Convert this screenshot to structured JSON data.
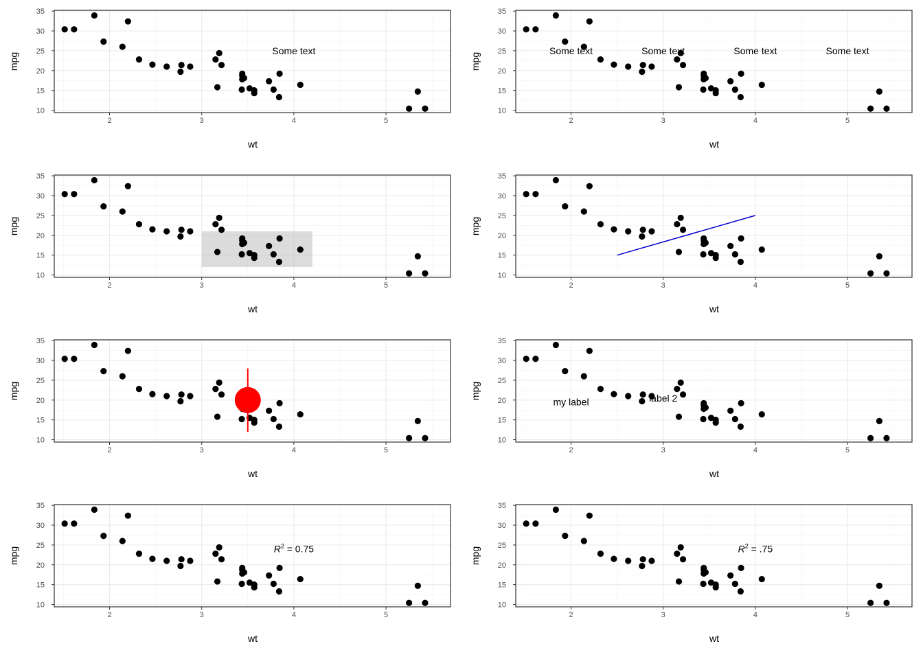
{
  "chart_data": [
    {
      "type": "scatter",
      "xlabel": "wt",
      "ylabel": "mpg",
      "xlim": [
        1.4,
        5.7
      ],
      "ylim": [
        9.4,
        35.2
      ],
      "x_ticks": [
        2,
        3,
        4,
        5
      ],
      "y_ticks": [
        10,
        15,
        20,
        25,
        30,
        35
      ],
      "grid": true,
      "annotations": [
        {
          "kind": "text",
          "text": "Some text",
          "x": 4,
          "y": 25
        }
      ]
    },
    {
      "type": "scatter",
      "xlabel": "wt",
      "ylabel": "mpg",
      "xlim": [
        1.4,
        5.7
      ],
      "ylim": [
        9.4,
        35.2
      ],
      "x_ticks": [
        2,
        3,
        4,
        5
      ],
      "y_ticks": [
        10,
        15,
        20,
        25,
        30,
        35
      ],
      "grid": true,
      "annotations": [
        {
          "kind": "text",
          "text": "Some text",
          "x": 2,
          "y": 25
        },
        {
          "kind": "text",
          "text": "Some text",
          "x": 3,
          "y": 25
        },
        {
          "kind": "text",
          "text": "Some text",
          "x": 4,
          "y": 25
        },
        {
          "kind": "text",
          "text": "Some text",
          "x": 5,
          "y": 25
        }
      ]
    },
    {
      "type": "scatter",
      "xlabel": "wt",
      "ylabel": "mpg",
      "xlim": [
        1.4,
        5.7
      ],
      "ylim": [
        9.4,
        35.2
      ],
      "x_ticks": [
        2,
        3,
        4,
        5
      ],
      "y_ticks": [
        10,
        15,
        20,
        25,
        30,
        35
      ],
      "grid": true,
      "annotations": [
        {
          "kind": "rect",
          "xmin": 3,
          "xmax": 4.2,
          "ymin": 12,
          "ymax": 21,
          "color": "#bfbfbf",
          "opacity": 0.55
        }
      ]
    },
    {
      "type": "scatter",
      "xlabel": "wt",
      "ylabel": "mpg",
      "xlim": [
        1.4,
        5.7
      ],
      "ylim": [
        9.4,
        35.2
      ],
      "x_ticks": [
        2,
        3,
        4,
        5
      ],
      "y_ticks": [
        10,
        15,
        20,
        25,
        30,
        35
      ],
      "grid": true,
      "annotations": [
        {
          "kind": "segment",
          "x": 2.5,
          "y": 15,
          "xend": 4,
          "yend": 25,
          "color": "#0000cc"
        }
      ]
    },
    {
      "type": "scatter",
      "xlabel": "wt",
      "ylabel": "mpg",
      "xlim": [
        1.4,
        5.7
      ],
      "ylim": [
        9.4,
        35.2
      ],
      "x_ticks": [
        2,
        3,
        4,
        5
      ],
      "y_ticks": [
        10,
        15,
        20,
        25,
        30,
        35
      ],
      "grid": true,
      "annotations": [
        {
          "kind": "pointrange",
          "x": 3.5,
          "y": 20,
          "ymin": 12,
          "ymax": 28,
          "color": "#ff0000"
        }
      ]
    },
    {
      "type": "scatter",
      "xlabel": "wt",
      "ylabel": "mpg",
      "xlim": [
        1.4,
        5.7
      ],
      "ylim": [
        9.4,
        35.2
      ],
      "x_ticks": [
        2,
        3,
        4,
        5
      ],
      "y_ticks": [
        10,
        15,
        20,
        25,
        30,
        35
      ],
      "grid": true,
      "annotations": [
        {
          "kind": "text",
          "text": "my label",
          "x": 2,
          "y": 19.5
        },
        {
          "kind": "text",
          "text": "label 2",
          "x": 3,
          "y": 20.5
        }
      ]
    },
    {
      "type": "scatter",
      "xlabel": "wt",
      "ylabel": "mpg",
      "xlim": [
        1.4,
        5.7
      ],
      "ylim": [
        9.4,
        35.2
      ],
      "x_ticks": [
        2,
        3,
        4,
        5
      ],
      "y_ticks": [
        10,
        15,
        20,
        25,
        30,
        35
      ],
      "grid": true,
      "annotations": [
        {
          "kind": "math",
          "base": "R",
          "sup": "2",
          "rest": " = 0.75",
          "x": 4,
          "y": 24
        }
      ]
    },
    {
      "type": "scatter",
      "xlabel": "wt",
      "ylabel": "mpg",
      "xlim": [
        1.4,
        5.7
      ],
      "ylim": [
        9.4,
        35.2
      ],
      "x_ticks": [
        2,
        3,
        4,
        5
      ],
      "y_ticks": [
        10,
        15,
        20,
        25,
        30,
        35
      ],
      "grid": true,
      "annotations": [
        {
          "kind": "math",
          "base": "R",
          "sup": "2",
          "rest": " = .75",
          "x": 4,
          "y": 24
        }
      ]
    }
  ],
  "points": {
    "x": [
      2.62,
      2.875,
      2.32,
      3.215,
      3.44,
      3.46,
      3.57,
      3.19,
      3.15,
      3.44,
      3.44,
      4.07,
      3.73,
      3.78,
      5.25,
      5.424,
      5.345,
      2.2,
      1.615,
      1.835,
      2.465,
      3.52,
      3.435,
      3.84,
      3.845,
      1.935,
      2.14,
      1.513,
      3.17,
      2.77,
      3.57,
      2.78
    ],
    "y": [
      21.0,
      21.0,
      22.8,
      21.4,
      18.7,
      18.1,
      14.3,
      24.4,
      22.8,
      19.2,
      17.8,
      16.4,
      17.3,
      15.2,
      10.4,
      10.4,
      14.7,
      32.4,
      30.4,
      33.9,
      21.5,
      15.5,
      15.2,
      13.3,
      19.2,
      27.3,
      26.0,
      30.4,
      15.8,
      19.7,
      15.0,
      21.4
    ]
  }
}
